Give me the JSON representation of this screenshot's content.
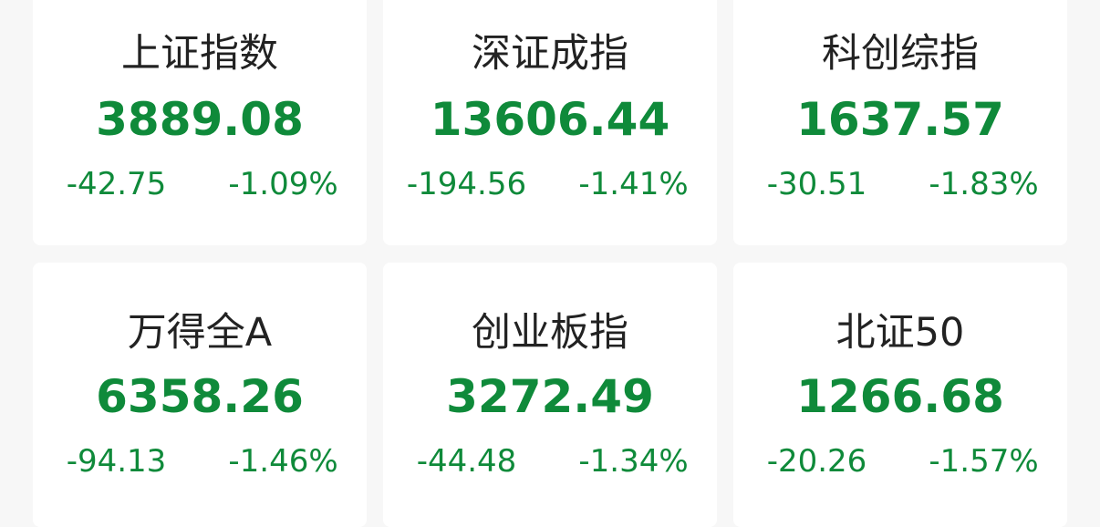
{
  "indices": [
    {
      "name": "上证指数",
      "value": "3889.08",
      "change": "-42.75",
      "percent": "-1.09%"
    },
    {
      "name": "深证成指",
      "value": "13606.44",
      "change": "-194.56",
      "percent": "-1.41%"
    },
    {
      "name": "科创综指",
      "value": "1637.57",
      "change": "-30.51",
      "percent": "-1.83%"
    },
    {
      "name": "万得全A",
      "value": "6358.26",
      "change": "-94.13",
      "percent": "-1.46%"
    },
    {
      "name": "创业板指",
      "value": "3272.49",
      "change": "-44.48",
      "percent": "-1.34%"
    },
    {
      "name": "北证50",
      "value": "1266.68",
      "change": "-20.26",
      "percent": "-1.57%"
    }
  ],
  "colors": {
    "down": "#0f8a3a",
    "background": "#f7f7f7"
  }
}
